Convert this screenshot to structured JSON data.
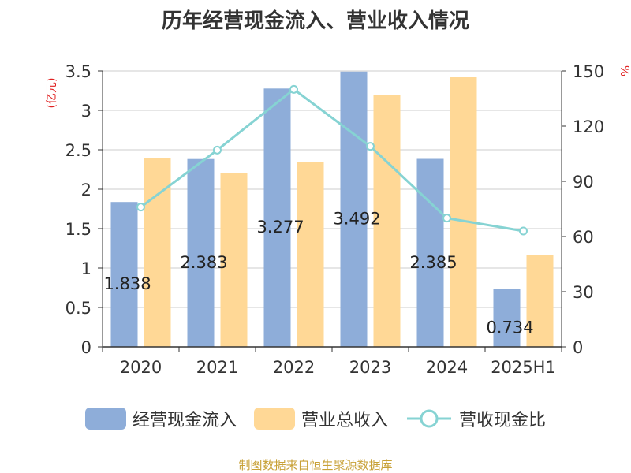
{
  "title": "历年经营现金流入、营业收入情况",
  "source": "制图数据来自恒生聚源数据库",
  "legend": {
    "cash_inflow": "经营现金流入",
    "revenue": "营业总收入",
    "ratio": "营收现金比"
  },
  "colors": {
    "cash_inflow": "#8eadd9",
    "revenue": "#ffd896",
    "ratio": "#86d3d3",
    "left_unit": "#e02020"
  },
  "chart_data": {
    "type": "bar",
    "categories": [
      "2020",
      "2021",
      "2022",
      "2023",
      "2024",
      "2025H1"
    ],
    "series": [
      {
        "name": "经营现金流入",
        "axis": "left",
        "type": "bar",
        "values": [
          1.838,
          2.383,
          3.277,
          3.492,
          2.385,
          0.734
        ],
        "labels": [
          "1.838",
          "2.383",
          "3.277",
          "3.492",
          "2.385",
          "0.734"
        ]
      },
      {
        "name": "营业总收入",
        "axis": "left",
        "type": "bar",
        "values": [
          2.4,
          2.21,
          2.35,
          3.19,
          3.42,
          1.17
        ]
      },
      {
        "name": "营收现金比",
        "axis": "right",
        "type": "line",
        "values": [
          76,
          107,
          140,
          109,
          70,
          63
        ]
      }
    ],
    "left_axis": {
      "unit": "(亿元)",
      "ylim": [
        0,
        3.5
      ],
      "ticks": [
        "0",
        "0.5",
        "1",
        "1.5",
        "2",
        "2.5",
        "3",
        "3.5"
      ]
    },
    "right_axis": {
      "unit": "%",
      "ylim": [
        0,
        150
      ],
      "ticks": [
        "0",
        "30",
        "60",
        "90",
        "120",
        "150"
      ]
    },
    "grid": true,
    "legend_position": "bottom"
  }
}
